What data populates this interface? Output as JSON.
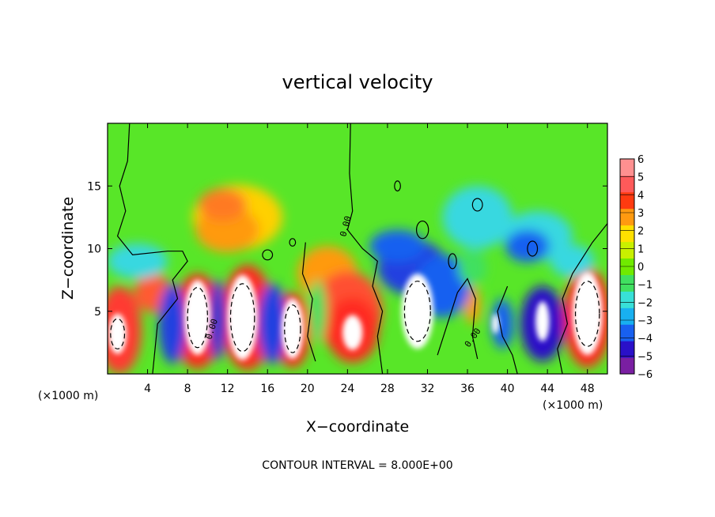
{
  "chart_data": {
    "type": "heatmap",
    "title": "vertical velocity",
    "xlabel": "X−coordinate",
    "ylabel": "Z−coordinate",
    "x_unit_left": "(×1000 m)",
    "x_unit_right": "(×1000 m)",
    "xlim": [
      0,
      50
    ],
    "ylim": [
      0,
      20
    ],
    "x_ticks": [
      4,
      8,
      12,
      16,
      20,
      24,
      28,
      32,
      36,
      40,
      44,
      48
    ],
    "y_ticks": [
      5,
      10,
      15
    ],
    "colorbar_ticks": [
      "6",
      "5",
      "4",
      "3",
      "2",
      "1",
      "0",
      "−1",
      "−2",
      "−3",
      "−4",
      "−5",
      "−6"
    ],
    "colorbar_range": [
      -6,
      6
    ],
    "colorbar_colors": [
      "#7a1fa2",
      "#2a10c8",
      "#1860f0",
      "#18b0f0",
      "#38e0d8",
      "#40e060",
      "#70ea00",
      "#c8f000",
      "#ffe000",
      "#ff9a10",
      "#ff3a10",
      "#ff5a5a",
      "#ff9090"
    ],
    "contour_labels": [
      "0.00",
      "0.00",
      "0.00"
    ],
    "contour_interval_text": "CONTOUR INTERVAL = 8.000E+00",
    "grid": false
  }
}
